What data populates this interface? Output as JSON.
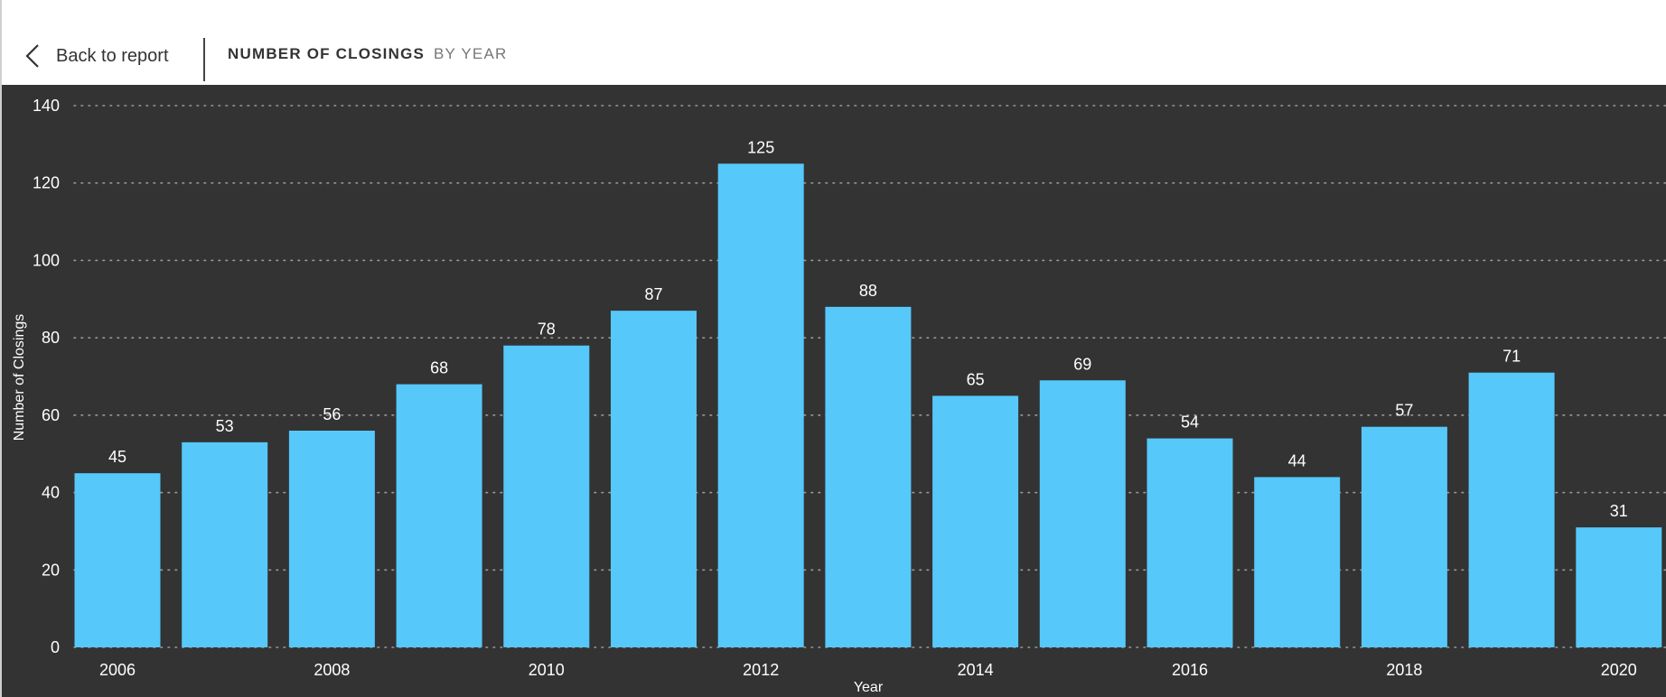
{
  "header": {
    "back_label": "Back to report",
    "title": "NUMBER OF CLOSINGS",
    "subtitle": "BY YEAR"
  },
  "colors": {
    "bar": "#56c8fa",
    "background": "#333333",
    "grid": "#9a9a9a",
    "text": "#ffffff"
  },
  "chart_data": {
    "type": "bar",
    "categories": [
      "2006",
      "2007",
      "2008",
      "2009",
      "2010",
      "2011",
      "2012",
      "2013",
      "2014",
      "2015",
      "2016",
      "2017",
      "2018",
      "2019",
      "2020"
    ],
    "values": [
      45,
      53,
      56,
      68,
      78,
      87,
      125,
      88,
      65,
      69,
      54,
      44,
      57,
      71,
      31
    ],
    "x_tick_labels": [
      "2006",
      "2008",
      "2010",
      "2012",
      "2014",
      "2016",
      "2018",
      "2020"
    ],
    "y_ticks": [
      0,
      20,
      40,
      60,
      80,
      100,
      120,
      140
    ],
    "ylim": [
      0,
      140
    ],
    "xlabel": "Year",
    "ylabel": "Number of Closings",
    "grid": true,
    "data_labels": true
  }
}
